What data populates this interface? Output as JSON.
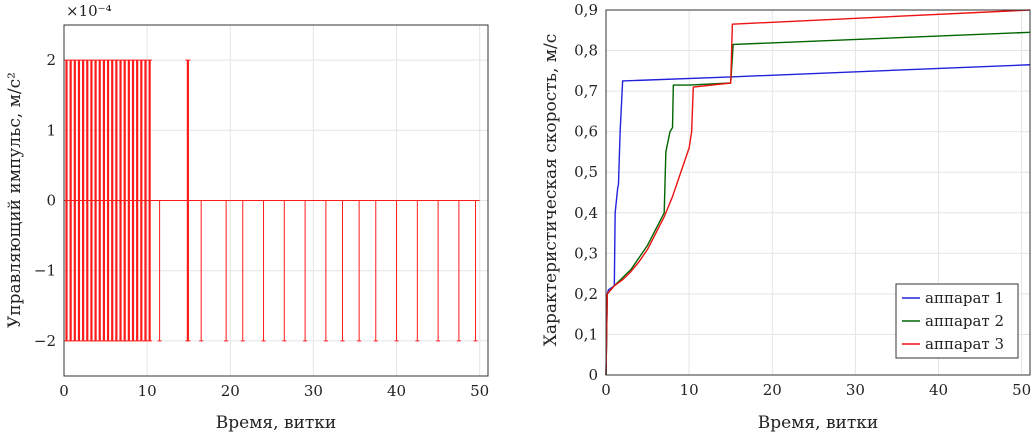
{
  "chart_data": [
    {
      "type": "line",
      "title": "",
      "xlabel": "Время, витки",
      "ylabel": "Управляющий импульс, м/с²",
      "y_multiplier_label": "×10⁻⁴",
      "xlim": [
        0,
        51
      ],
      "ylim": [
        -2.5,
        2.5
      ],
      "xticks": [
        0,
        10,
        20,
        30,
        40,
        50
      ],
      "xtick_labels": [
        "0",
        "10",
        "20",
        "30",
        "40",
        "50"
      ],
      "yticks": [
        -2,
        -1,
        0,
        1,
        2
      ],
      "ytick_labels": [
        "−2",
        "−1",
        "0",
        "1",
        "2"
      ],
      "grid": true,
      "series_color": "#ff1a1a",
      "series": [
        {
          "description_free": true,
          "full_pulses": [
            0.3,
            0.8,
            1.3,
            1.8,
            2.3,
            2.8,
            3.3,
            3.8,
            4.3,
            4.8,
            5.3,
            5.8,
            6.3,
            6.8,
            7.3,
            7.8,
            8.3,
            8.8,
            9.3,
            9.8,
            10.3,
            14.9
          ],
          "negative_pulses": [
            11.5,
            16.5,
            19.5,
            21.5,
            24.0,
            26.5,
            29.0,
            31.5,
            33.5,
            35.5,
            37.5,
            40.0,
            42.5,
            45.0,
            47.5,
            49.5
          ],
          "pulse_max": 2,
          "pulse_min": -2
        }
      ]
    },
    {
      "type": "line",
      "title": "",
      "xlabel": "Время, витки",
      "ylabel": "Характеристическая скорость, м/с",
      "xlim": [
        0,
        51
      ],
      "ylim": [
        0,
        0.9
      ],
      "xticks": [
        0,
        10,
        20,
        30,
        40,
        50
      ],
      "xtick_labels": [
        "0",
        "10",
        "20",
        "30",
        "40",
        "50"
      ],
      "yticks": [
        0.1,
        0.2,
        0.3,
        0.4,
        0.5,
        0.6,
        0.7,
        0.8,
        0.9
      ],
      "ytick_labels": [
        "0,1",
        "0,2",
        "0,3",
        "0,4",
        "0,5",
        "0,6",
        "0,7",
        "0,8",
        "0,9"
      ],
      "ytick_zero_label": "0",
      "grid": true,
      "legend_position": "bottom-right",
      "series": [
        {
          "name": "аппарат 1",
          "color": "#2222dd",
          "x": [
            0,
            0.15,
            0.3,
            1.0,
            1.1,
            1.4,
            1.5,
            1.7,
            2.0,
            15.0,
            51
          ],
          "y": [
            0,
            0.2,
            0.21,
            0.22,
            0.4,
            0.46,
            0.47,
            0.6,
            0.725,
            0.735,
            0.765
          ]
        },
        {
          "name": "аппарат 2",
          "color": "#006600",
          "x": [
            0,
            0.15,
            1.0,
            3.0,
            5.0,
            6.5,
            7.0,
            7.2,
            7.7,
            8.0,
            8.1,
            10.0,
            15.0,
            15.3,
            51
          ],
          "y": [
            0,
            0.2,
            0.22,
            0.26,
            0.32,
            0.38,
            0.4,
            0.55,
            0.6,
            0.61,
            0.715,
            0.715,
            0.72,
            0.815,
            0.845
          ]
        },
        {
          "name": "аппарат 3",
          "color": "#ee1111",
          "x": [
            0,
            0.15,
            1.0,
            2.0,
            3.0,
            4.0,
            5.0,
            6.0,
            7.0,
            8.0,
            9.0,
            10.0,
            10.3,
            10.5,
            15.0,
            15.2,
            51
          ],
          "y": [
            0,
            0.2,
            0.22,
            0.235,
            0.255,
            0.28,
            0.31,
            0.35,
            0.39,
            0.44,
            0.5,
            0.56,
            0.6,
            0.71,
            0.72,
            0.865,
            0.9
          ]
        }
      ]
    }
  ]
}
